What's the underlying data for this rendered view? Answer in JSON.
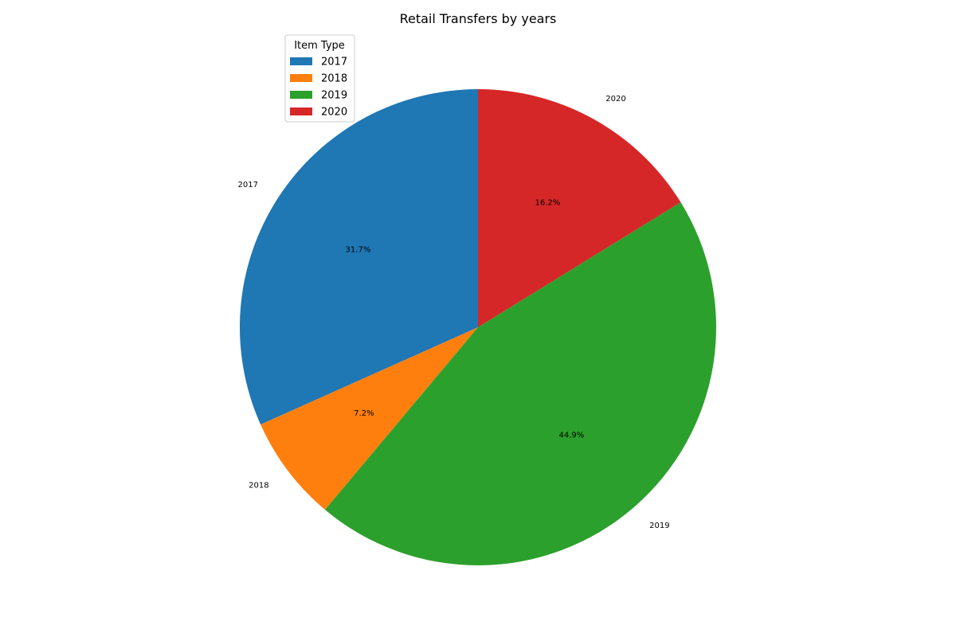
{
  "chart_data": {
    "type": "pie",
    "title": "Retail Transfers by years",
    "categories": [
      "2017",
      "2018",
      "2019",
      "2020"
    ],
    "values": [
      31.7,
      7.2,
      44.9,
      16.2
    ],
    "percent_labels": [
      "31.7%",
      "7.2%",
      "44.9%",
      "16.2%"
    ],
    "colors": [
      "#1f77b4",
      "#ff7f0e",
      "#2ca02c",
      "#d62728"
    ],
    "start_angle_deg": 90,
    "direction": "counterclockwise",
    "legend": {
      "title": "Item Type",
      "placement": "upper-left",
      "entries": [
        "2017",
        "2018",
        "2019",
        "2020"
      ]
    }
  }
}
